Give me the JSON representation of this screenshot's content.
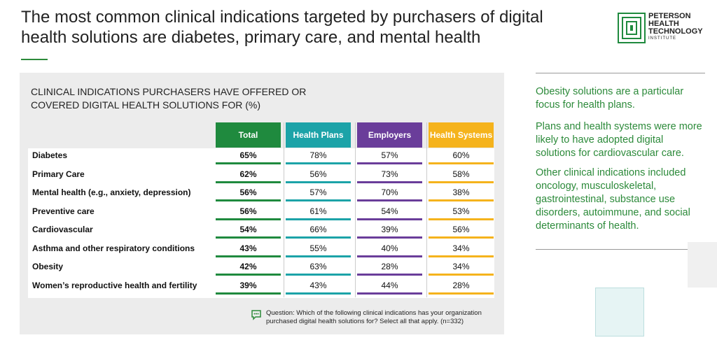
{
  "header": {
    "title": "The most common clinical indications targeted by purchasers of digital health solutions are diabetes, primary care, and mental health",
    "logo": {
      "line1": "PETERSON",
      "line2": "HEALTH",
      "line3": "TECHNOLOGY",
      "line4": "INSTITUTE"
    }
  },
  "panel": {
    "heading": "CLINICAL INDICATIONS PURCHASERS HAVE OFFERED OR COVERED DIGITAL HEALTH SOLUTIONS FOR (%)",
    "table": {
      "columns": [
        {
          "label": "Total",
          "color": "#1f8a3e"
        },
        {
          "label": "Health Plans",
          "color": "#1ca3a8"
        },
        {
          "label": "Employers",
          "color": "#6a3d9a"
        },
        {
          "label": "Health Systems",
          "color": "#f5b31c"
        }
      ],
      "rows": [
        {
          "label": "Diabetes",
          "values": [
            "65%",
            "78%",
            "57%",
            "60%"
          ]
        },
        {
          "label": "Primary Care",
          "values": [
            "62%",
            "56%",
            "73%",
            "58%"
          ]
        },
        {
          "label": "Mental health (e.g., anxiety, depression)",
          "values": [
            "56%",
            "57%",
            "70%",
            "38%"
          ]
        },
        {
          "label": "Preventive care",
          "values": [
            "56%",
            "61%",
            "54%",
            "53%"
          ]
        },
        {
          "label": "Cardiovascular",
          "values": [
            "54%",
            "66%",
            "39%",
            "56%"
          ]
        },
        {
          "label": "Asthma and other respiratory conditions",
          "values": [
            "43%",
            "55%",
            "40%",
            "34%"
          ]
        },
        {
          "label": "Obesity",
          "values": [
            "42%",
            "63%",
            "28%",
            "34%"
          ]
        },
        {
          "label": "Women’s reproductive health and fertility",
          "values": [
            "39%",
            "43%",
            "44%",
            "28%"
          ]
        }
      ]
    },
    "footnote": "Question: Which of the following clinical indications has your organization purchased digital health solutions for? Select all that apply. (n=332)"
  },
  "sidebar": {
    "notes": [
      "Obesity solutions are a particular focus for health plans.",
      "Plans and health systems were more likely to have adopted digital solutions for cardiovascular care.",
      "Other clinical indications included oncology, musculoskeletal, gastrointestinal, substance use disorders, autoimmune, and social determinants of health."
    ]
  }
}
